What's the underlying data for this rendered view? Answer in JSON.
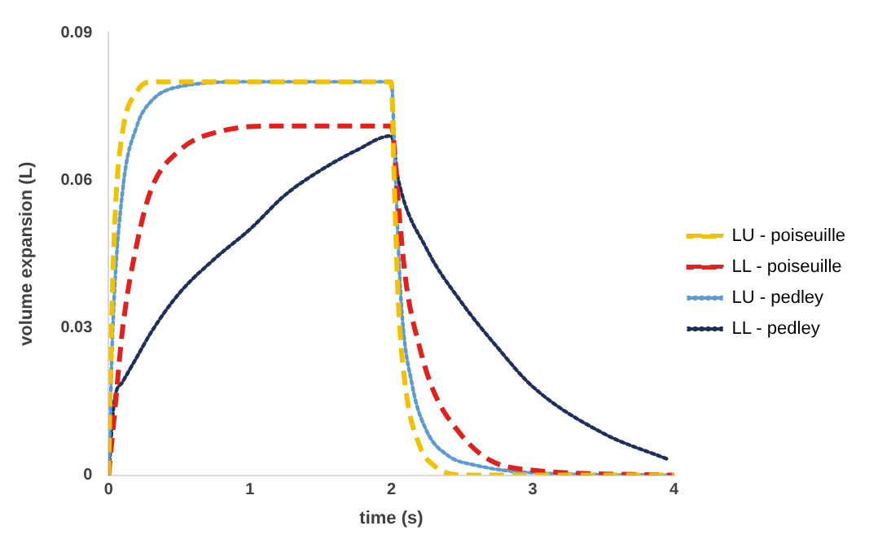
{
  "chart_data": {
    "type": "line",
    "xlabel": "time (s)",
    "ylabel": "volume expansion (L)",
    "xlim": [
      0,
      4
    ],
    "xticks": [
      0,
      1,
      2,
      3,
      4
    ],
    "ylim": [
      0,
      0.09
    ],
    "yticks": [
      0,
      0.03,
      0.06,
      0.09
    ],
    "grid": false,
    "legend": "right",
    "marker": "none",
    "series": [
      {
        "name": "LU - poiseuille",
        "color": "#f2c200",
        "line_style": "dashed",
        "x": [
          0,
          0.02,
          0.05,
          0.1,
          0.2,
          0.3,
          2,
          2.02,
          2.05,
          2.1,
          2.2,
          2.3,
          2.5,
          4
        ],
        "values": [
          0,
          0.03,
          0.055,
          0.07,
          0.078,
          0.08,
          0.08,
          0.06,
          0.035,
          0.018,
          0.006,
          0.002,
          0,
          0
        ]
      },
      {
        "name": "LL - poiseuille",
        "color": "#e3201b",
        "line_style": "dashed",
        "x": [
          0,
          0.05,
          0.1,
          0.2,
          0.3,
          0.5,
          0.8,
          1.2,
          2,
          2.05,
          2.1,
          2.2,
          2.3,
          2.5,
          2.7,
          3,
          4
        ],
        "values": [
          0,
          0.015,
          0.03,
          0.047,
          0.058,
          0.066,
          0.07,
          0.071,
          0.071,
          0.055,
          0.04,
          0.026,
          0.017,
          0.008,
          0.003,
          0.001,
          0
        ]
      },
      {
        "name": "LU - pedley",
        "color": "#5b9bd5",
        "line_style": "dotted",
        "x": [
          0,
          0.03,
          0.1,
          0.2,
          0.3,
          0.5,
          1,
          2,
          2.03,
          2.07,
          2.15,
          2.25,
          2.4,
          2.6,
          3,
          4
        ],
        "values": [
          0,
          0.03,
          0.058,
          0.071,
          0.076,
          0.079,
          0.08,
          0.08,
          0.06,
          0.035,
          0.018,
          0.009,
          0.004,
          0.002,
          0.0005,
          0
        ]
      },
      {
        "name": "LL - pedley",
        "color": "#1f2f5c",
        "line_style": "dotted",
        "x": [
          0,
          0.04,
          0.1,
          0.2,
          0.3,
          0.5,
          0.75,
          1,
          1.25,
          1.5,
          1.75,
          2,
          2.05,
          2.25,
          2.5,
          2.75,
          3,
          3.5,
          3.95
        ],
        "values": [
          0,
          0.015,
          0.019,
          0.024,
          0.029,
          0.037,
          0.044,
          0.05,
          0.057,
          0.062,
          0.066,
          0.069,
          0.06,
          0.046,
          0.035,
          0.026,
          0.018,
          0.0085,
          0.0033
        ]
      }
    ]
  }
}
